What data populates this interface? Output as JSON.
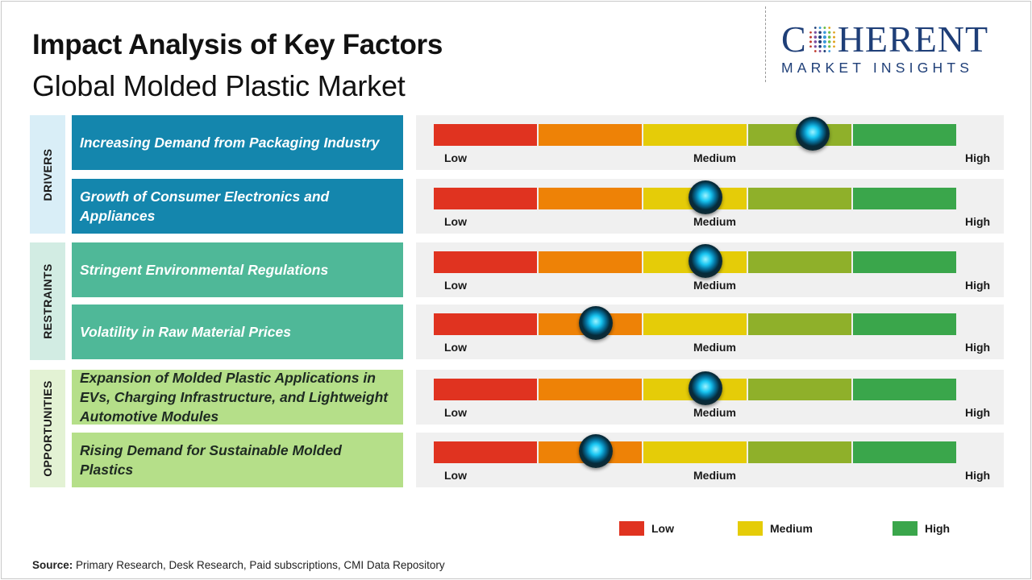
{
  "header": {
    "title": "Impact Analysis of Key Factors",
    "subtitle": "Global Molded Plastic Market"
  },
  "logo": {
    "word_left": "C",
    "word_right": "HERENT",
    "tagline": "MARKET INSIGHTS"
  },
  "categories": [
    {
      "label": "DRIVERS",
      "color": "#d9eef7"
    },
    {
      "label": "RESTRAINTS",
      "color": "#d2ece3"
    },
    {
      "label": "OPPORTUNITIES",
      "color": "#e3f2d4"
    }
  ],
  "chart_data": {
    "type": "gauge",
    "scale_labels": {
      "low": "Low",
      "medium": "Medium",
      "high": "High"
    },
    "segment_colors": [
      "#e03320",
      "#ee8206",
      "#e5cc08",
      "#8fb02a",
      "#3aa64b"
    ],
    "factors": [
      {
        "category": "DRIVERS",
        "label": "Increasing Demand from Packaging Industry",
        "impact": 0.725
      },
      {
        "category": "DRIVERS",
        "label": "Growth of Consumer Electronics and Appliances",
        "impact": 0.52
      },
      {
        "category": "RESTRAINTS",
        "label": "Stringent Environmental Regulations",
        "impact": 0.52
      },
      {
        "category": "RESTRAINTS",
        "label": "Volatility in Raw Material Prices",
        "impact": 0.31
      },
      {
        "category": "OPPORTUNITIES",
        "label": "Expansion of Molded Plastic Applications in EVs, Charging Infrastructure, and Lightweight Automotive Modules",
        "impact": 0.52
      },
      {
        "category": "OPPORTUNITIES",
        "label": "Rising Demand for Sustainable Molded Plastics",
        "impact": 0.31
      }
    ]
  },
  "legend": [
    {
      "label": "Low",
      "color": "#e03320"
    },
    {
      "label": "Medium",
      "color": "#e5cc08"
    },
    {
      "label": "High",
      "color": "#3aa64b"
    }
  ],
  "source": {
    "label": "Source:",
    "text": " Primary Research, Desk Research, Paid subscriptions, CMI Data Repository"
  },
  "colors": {
    "driver_box": "#1486ad",
    "restraint_box": "#4fb898",
    "opportunity_box": "#b5df89"
  }
}
